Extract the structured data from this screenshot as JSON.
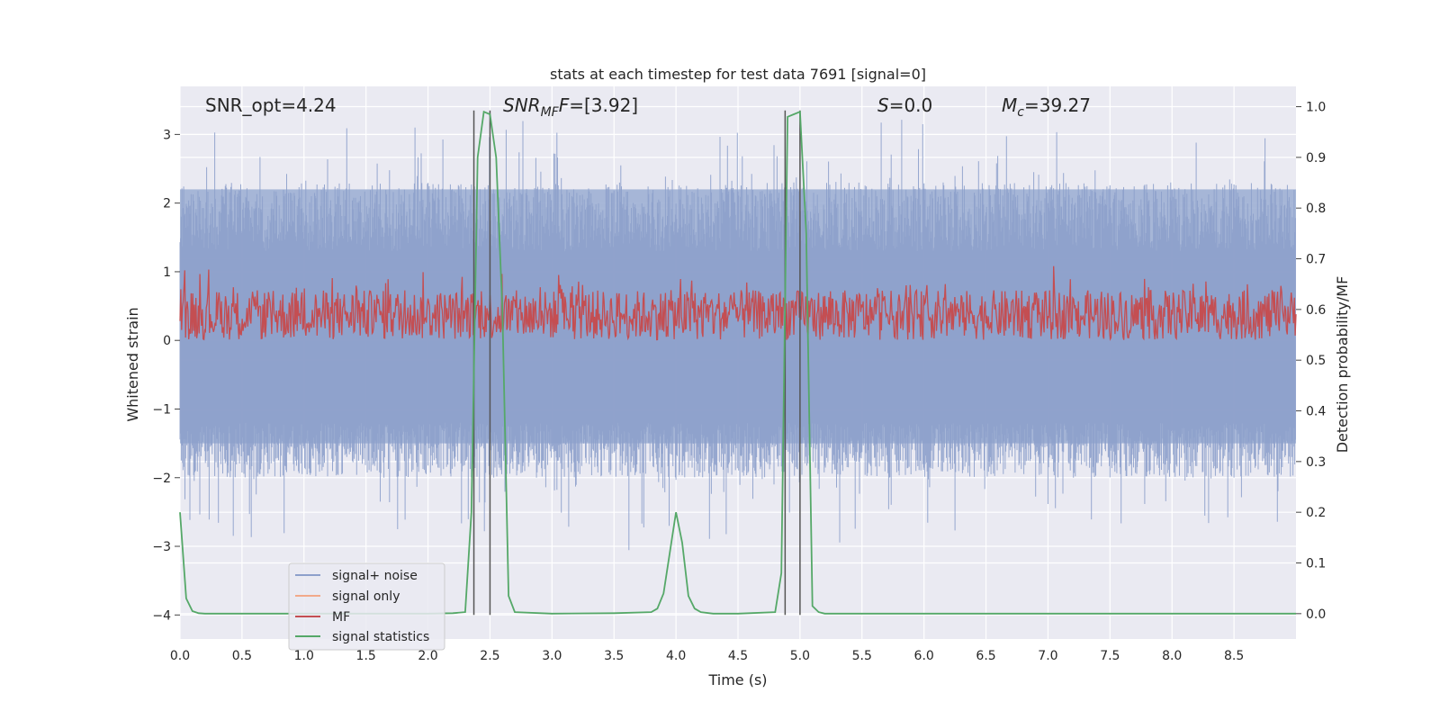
{
  "chart_data": {
    "type": "line",
    "title": "stats at each timestep for test data 7691 [signal=0]",
    "xlabel": "Time (s)",
    "ylabel": "Whitened strain",
    "ylabel_right": "Detection probability/MF",
    "xlim": [
      0.0,
      9.0
    ],
    "ylim": [
      -4.35,
      3.7
    ],
    "ylim_right": [
      -0.05,
      1.04
    ],
    "x_ticks": [
      "0.0",
      "0.5",
      "1.0",
      "1.5",
      "2.0",
      "2.5",
      "3.0",
      "3.5",
      "4.0",
      "4.5",
      "5.0",
      "5.5",
      "6.0",
      "6.5",
      "7.0",
      "7.5",
      "8.0",
      "8.5"
    ],
    "y_ticks": [
      "3",
      "2",
      "1",
      "0",
      "−1",
      "−2",
      "−3",
      "−4"
    ],
    "y_right_ticks": [
      "1.0",
      "0.9",
      "0.8",
      "0.7",
      "0.6",
      "0.5",
      "0.4",
      "0.3",
      "0.2",
      "0.1",
      "0.0"
    ],
    "annotations": {
      "snr_opt": "SNR_opt=4.24",
      "snr_mf_main": "SNR",
      "snr_mf_sub": "MF",
      "snr_mf_rest": "=[3.92]",
      "s_main": "S",
      "s_rest": "=0.0",
      "mc_main": "M",
      "mc_sub": "c",
      "mc_rest": "=39.27"
    },
    "legend": [
      {
        "label": "signal+ noise",
        "color": "#8da0cb"
      },
      {
        "label": "signal only",
        "color": "#f2a98a"
      },
      {
        "label": "MF",
        "color": "#c44e52"
      },
      {
        "label": "signal statistics",
        "color": "#55a868"
      }
    ],
    "series": [
      {
        "name": "signal+ noise",
        "axis": "left",
        "description": "noise fill roughly between -1.6 and 2.4 with spikes to ±3",
        "envelope": [
          -1.5,
          2.2
        ]
      },
      {
        "name": "signal only",
        "axis": "left",
        "values": []
      },
      {
        "name": "MF",
        "axis": "right",
        "description": "oscillating around 0.6",
        "envelope": [
          0.54,
          0.68
        ]
      },
      {
        "name": "signal statistics",
        "axis": "right",
        "x": [
          0.0,
          0.05,
          0.1,
          0.15,
          0.2,
          0.3,
          0.5,
          1.0,
          1.5,
          2.0,
          2.2,
          2.3,
          2.35,
          2.4,
          2.45,
          2.5,
          2.55,
          2.6,
          2.65,
          2.7,
          3.0,
          3.5,
          3.8,
          3.85,
          3.9,
          3.95,
          4.0,
          4.05,
          4.1,
          4.15,
          4.2,
          4.3,
          4.5,
          4.8,
          4.85,
          4.9,
          4.95,
          5.0,
          5.05,
          5.1,
          5.15,
          5.2,
          5.3,
          6.0,
          7.0,
          8.0,
          9.0
        ],
        "values": [
          0.2,
          0.03,
          0.005,
          0.001,
          0.0,
          0.0,
          0.0,
          0.0,
          0.0,
          0.0,
          0.001,
          0.003,
          0.2,
          0.9,
          0.99,
          0.985,
          0.9,
          0.6,
          0.035,
          0.003,
          0.0,
          0.001,
          0.003,
          0.01,
          0.04,
          0.12,
          0.2,
          0.14,
          0.035,
          0.01,
          0.003,
          0.0,
          0.0,
          0.003,
          0.08,
          0.98,
          0.985,
          0.99,
          0.75,
          0.015,
          0.003,
          0.0,
          0.0,
          0.0,
          0.0,
          0.0,
          0.0
        ]
      },
      {
        "name": "vertical markers",
        "axis": "left",
        "x": [
          2.37,
          2.5,
          4.88,
          5.0
        ],
        "range": [
          -4.0,
          3.35
        ]
      }
    ]
  }
}
